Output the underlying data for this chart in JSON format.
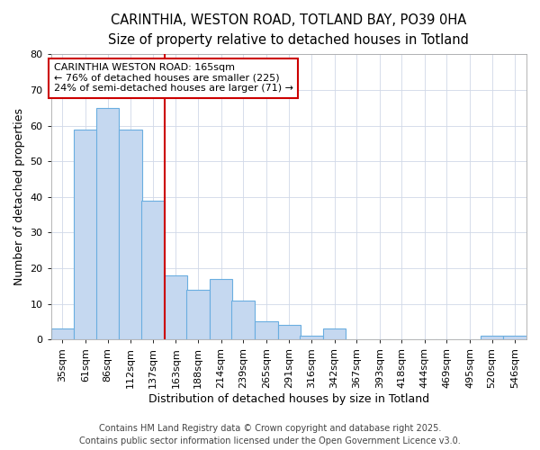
{
  "title_line1": "CARINTHIA, WESTON ROAD, TOTLAND BAY, PO39 0HA",
  "title_line2": "Size of property relative to detached houses in Totland",
  "xlabel": "Distribution of detached houses by size in Totland",
  "ylabel": "Number of detached properties",
  "bin_labels": [
    "35sqm",
    "61sqm",
    "86sqm",
    "112sqm",
    "137sqm",
    "163sqm",
    "188sqm",
    "214sqm",
    "239sqm",
    "265sqm",
    "291sqm",
    "316sqm",
    "342sqm",
    "367sqm",
    "393sqm",
    "418sqm",
    "444sqm",
    "469sqm",
    "495sqm",
    "520sqm",
    "546sqm"
  ],
  "bin_edges": [
    35,
    61,
    86,
    112,
    137,
    163,
    188,
    214,
    239,
    265,
    291,
    316,
    342,
    367,
    393,
    418,
    444,
    469,
    495,
    520,
    546
  ],
  "bar_heights": [
    3,
    59,
    65,
    59,
    39,
    18,
    14,
    17,
    11,
    5,
    4,
    1,
    3,
    0,
    0,
    0,
    0,
    0,
    0,
    1,
    1
  ],
  "bar_color": "#c5d8f0",
  "bar_edge_color": "#6aaee0",
  "vline_x_index": 5,
  "vline_color": "#cc0000",
  "annotation_text": "CARINTHIA WESTON ROAD: 165sqm\n← 76% of detached houses are smaller (225)\n24% of semi-detached houses are larger (71) →",
  "annotation_box_color": "#ffffff",
  "annotation_box_edge": "#cc0000",
  "ylim": [
    0,
    80
  ],
  "yticks": [
    0,
    10,
    20,
    30,
    40,
    50,
    60,
    70,
    80
  ],
  "footer_line1": "Contains HM Land Registry data © Crown copyright and database right 2025.",
  "footer_line2": "Contains public sector information licensed under the Open Government Licence v3.0.",
  "plot_bg_color": "#ffffff",
  "fig_bg_color": "#ffffff",
  "grid_color": "#d0d8e8",
  "title_fontsize": 10.5,
  "subtitle_fontsize": 9.5,
  "axis_label_fontsize": 9,
  "tick_fontsize": 8,
  "footer_fontsize": 7,
  "annotation_fontsize": 8
}
